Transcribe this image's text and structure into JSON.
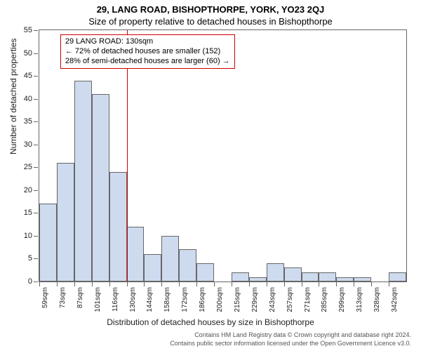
{
  "header": {
    "address_line": "29, LANG ROAD, BISHOPTHORPE, YORK, YO23 2QJ",
    "subtitle": "Size of property relative to detached houses in Bishopthorpe"
  },
  "chart": {
    "type": "histogram",
    "ylabel": "Number of detached properties",
    "xlabel": "Distribution of detached houses by size in Bishopthorpe",
    "ylim": [
      0,
      55
    ],
    "ytick_step": 5,
    "yticks": [
      0,
      5,
      10,
      15,
      20,
      25,
      30,
      35,
      40,
      45,
      50,
      55
    ],
    "bar_fill": "rgba(180,200,230,0.65)",
    "bar_border": "#666666",
    "background_color": "#ffffff",
    "axis_color": "#666666",
    "x_categories": [
      "59sqm",
      "73sqm",
      "87sqm",
      "101sqm",
      "116sqm",
      "130sqm",
      "144sqm",
      "158sqm",
      "172sqm",
      "186sqm",
      "200sqm",
      "215sqm",
      "229sqm",
      "243sqm",
      "257sqm",
      "271sqm",
      "285sqm",
      "299sqm",
      "313sqm",
      "328sqm",
      "342sqm"
    ],
    "bar_values": [
      17,
      26,
      44,
      41,
      24,
      12,
      6,
      10,
      7,
      4,
      0,
      2,
      1,
      4,
      3,
      2,
      2,
      1,
      1,
      0,
      2
    ],
    "marker": {
      "x_index_right_edge": 5,
      "color": "#cc0000"
    },
    "annotation": {
      "border_color": "#cc0000",
      "bg_color": "#ffffff",
      "lines": [
        "29 LANG ROAD: 130sqm",
        "← 72% of detached houses are smaller (152)",
        "28% of semi-detached houses are larger (60) →"
      ],
      "fontsize": 11
    },
    "label_fontsize": 12,
    "tick_fontsize": 11
  },
  "footer": {
    "line1": "Contains HM Land Registry data © Crown copyright and database right 2024.",
    "line2": "Contains public sector information licensed under the Open Government Licence v3.0."
  }
}
